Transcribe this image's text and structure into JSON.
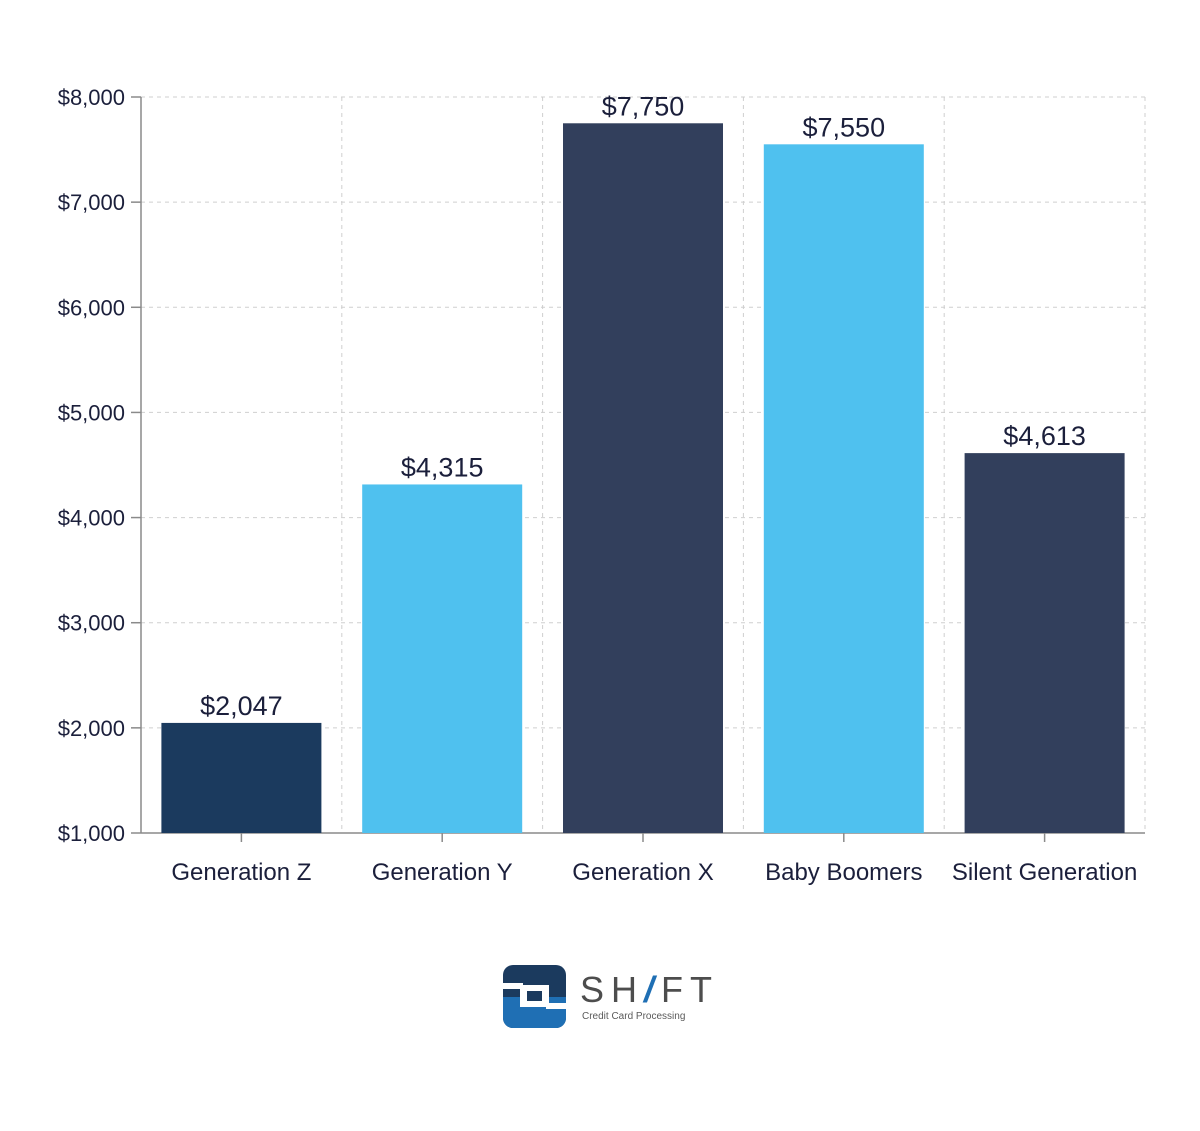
{
  "chart_data": {
    "type": "bar",
    "categories": [
      "Generation Z",
      "Generation Y",
      "Generation X",
      "Baby Boomers",
      "Silent Generation"
    ],
    "values": [
      2047,
      4315,
      7750,
      7550,
      4613
    ],
    "data_labels": [
      "$2,047",
      "$4,315",
      "$7,750",
      "$7,550",
      "$4,613"
    ],
    "bar_colors": [
      "#1b3a5e",
      "#4fc1ef",
      "#323f5c",
      "#4fc1ef",
      "#323f5c"
    ],
    "title": "",
    "xlabel": "",
    "ylabel": "",
    "ylim": [
      1000,
      8000
    ],
    "yticks": [
      1000,
      2000,
      3000,
      4000,
      5000,
      6000,
      7000,
      8000
    ],
    "ytick_labels": [
      "$1,000",
      "$2,000",
      "$3,000",
      "$4,000",
      "$5,000",
      "$6,000",
      "$7,000",
      "$8,000"
    ],
    "grid": true,
    "grid_style": "dashed",
    "legend": "none"
  },
  "logo": {
    "name_prefix": "SH",
    "name_slash": "/",
    "name_suffix": "FT",
    "tagline": "Credit Card Processing",
    "icon": "shift-logo-icon",
    "colors": {
      "dark": "#1b3a5e",
      "accent": "#1f6fb4",
      "text": "#4d4d4d"
    }
  }
}
